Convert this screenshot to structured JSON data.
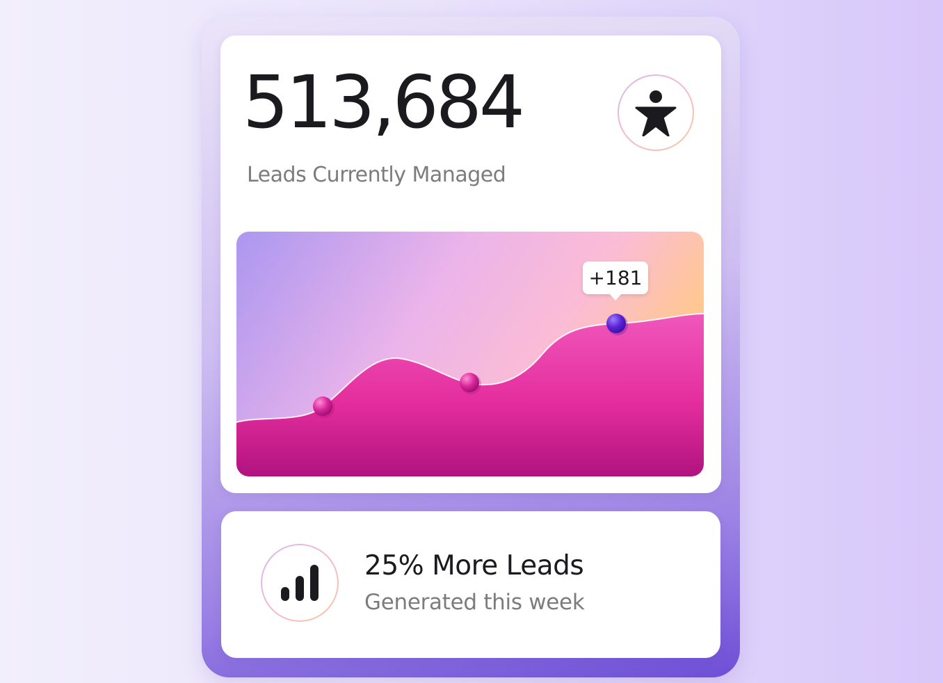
{
  "summary": {
    "total_value": "513,684",
    "total_label": "Leads Currently Managed",
    "icon": "person-star-icon"
  },
  "chart_data": {
    "type": "area",
    "annotation": "+181",
    "highlighted_point": 3,
    "colors": {
      "fill_top": "#f048b0",
      "fill_bottom": "#b01481",
      "marker": "#d12a95",
      "marker_highlight": "#6a2bd9",
      "line": "#ffffff"
    }
  },
  "stat": {
    "title": "25% More Leads",
    "subtitle": "Generated this week",
    "icon": "bar-chart-icon"
  },
  "colors": {
    "accent": "#6d4fd6",
    "text_primary": "#1a1a1f",
    "text_secondary": "#7b7b80"
  }
}
